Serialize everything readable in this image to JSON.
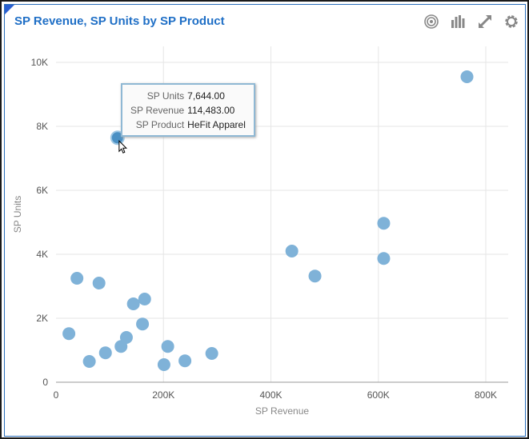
{
  "title": "SP Revenue, SP Units by SP Product",
  "toolbar": {
    "icons": [
      "target-icon",
      "bar-chart-icon",
      "expand-icon",
      "gear-icon"
    ]
  },
  "tooltip": {
    "rows": [
      {
        "label": "SP Units",
        "value": "7,644.00"
      },
      {
        "label": "SP Revenue",
        "value": "114,483.00"
      },
      {
        "label": "SP Product",
        "value": "HeFit Apparel"
      }
    ]
  },
  "colors": {
    "point": "#7fb2d8",
    "point_hover": "#4a90c4",
    "title": "#1f6fc6"
  },
  "chart_data": {
    "type": "scatter",
    "title": "SP Revenue, SP Units by SP Product",
    "xlabel": "SP Revenue",
    "ylabel": "SP Units",
    "xlim": [
      0,
      840000
    ],
    "ylim": [
      0,
      10500
    ],
    "xticks": [
      0,
      200000,
      400000,
      600000,
      800000
    ],
    "xtick_labels": [
      "0",
      "200K",
      "400K",
      "600K",
      "800K"
    ],
    "yticks": [
      0,
      2000,
      4000,
      6000,
      8000,
      10000
    ],
    "ytick_labels": [
      "0",
      "2K",
      "4K",
      "6K",
      "8K",
      "10K"
    ],
    "grid": true,
    "highlighted_index": 1,
    "points": [
      {
        "x": 765000,
        "y": 9550
      },
      {
        "x": 114483,
        "y": 7644
      },
      {
        "x": 610000,
        "y": 4970
      },
      {
        "x": 610000,
        "y": 3870
      },
      {
        "x": 439000,
        "y": 4100
      },
      {
        "x": 482000,
        "y": 3320
      },
      {
        "x": 39000,
        "y": 3250
      },
      {
        "x": 80000,
        "y": 3100
      },
      {
        "x": 144000,
        "y": 2450
      },
      {
        "x": 165000,
        "y": 2600
      },
      {
        "x": 24000,
        "y": 1520
      },
      {
        "x": 161000,
        "y": 1820
      },
      {
        "x": 131000,
        "y": 1400
      },
      {
        "x": 121000,
        "y": 1120
      },
      {
        "x": 92000,
        "y": 920
      },
      {
        "x": 62000,
        "y": 650
      },
      {
        "x": 208000,
        "y": 1120
      },
      {
        "x": 201000,
        "y": 550
      },
      {
        "x": 240000,
        "y": 670
      },
      {
        "x": 290000,
        "y": 900
      }
    ]
  }
}
